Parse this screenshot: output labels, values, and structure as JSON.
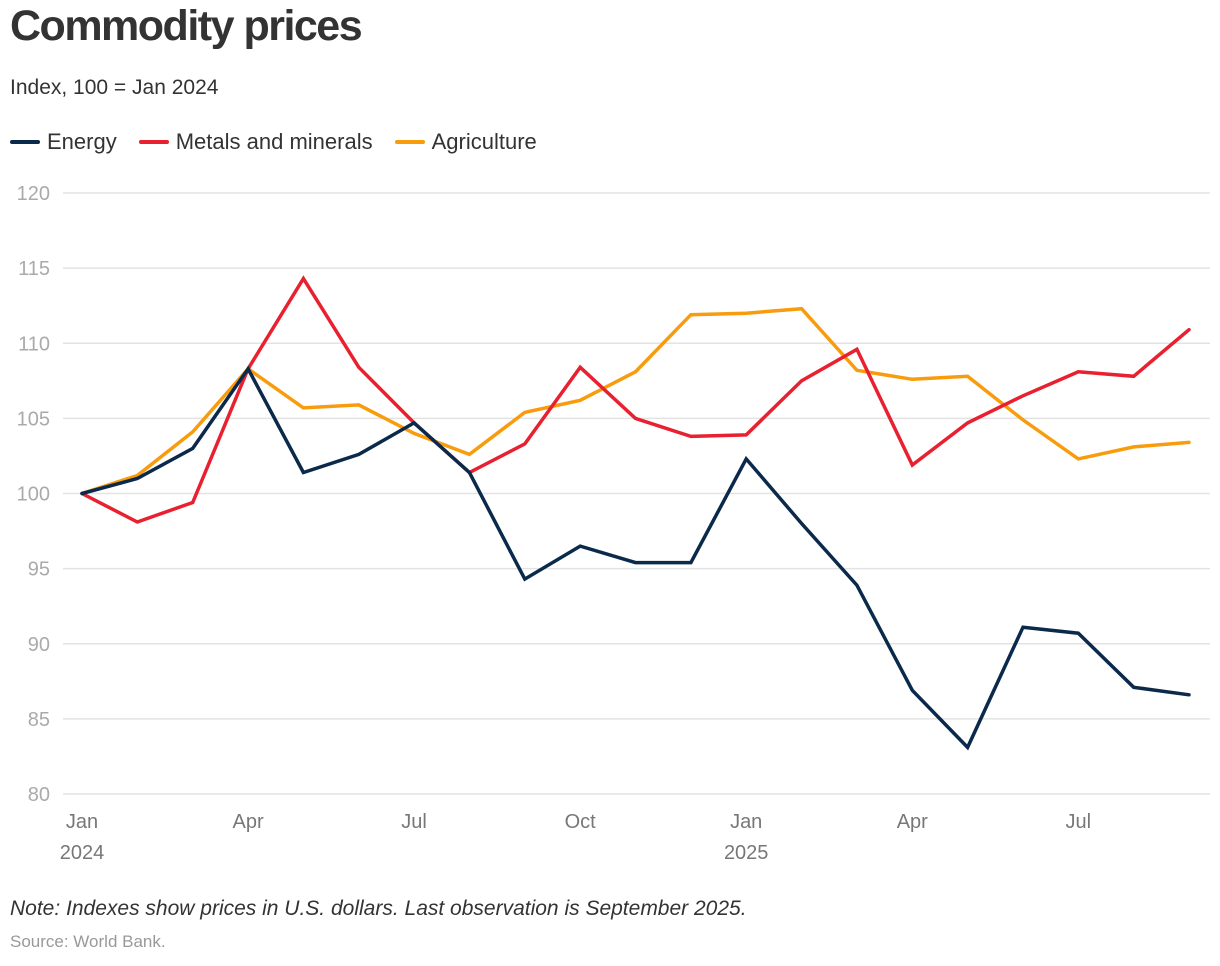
{
  "header": {
    "title": "Commodity prices",
    "subtitle": "Index, 100 = Jan 2024"
  },
  "legend": [
    {
      "label": "Energy",
      "color": "#0b2a4b"
    },
    {
      "label": "Metals and minerals",
      "color": "#e8202f"
    },
    {
      "label": "Agriculture",
      "color": "#f89c0e"
    }
  ],
  "footer": {
    "note": "Note: Indexes show prices in U.S. dollars. Last observation is September 2025.",
    "source": "Source: World Bank."
  },
  "chart_data": {
    "type": "line",
    "title": "Commodity prices",
    "subtitle": "Index, 100 = Jan 2024",
    "xlabel": "",
    "ylabel": "",
    "x": [
      "Jan 2024",
      "Feb 2024",
      "Mar 2024",
      "Apr 2024",
      "May 2024",
      "Jun 2024",
      "Jul 2024",
      "Aug 2024",
      "Sep 2024",
      "Oct 2024",
      "Nov 2024",
      "Dec 2024",
      "Jan 2025",
      "Feb 2025",
      "Mar 2025",
      "Apr 2025",
      "May 2025",
      "Jun 2025",
      "Jul 2025",
      "Aug 2025",
      "Sep 2025"
    ],
    "x_ticks": [
      {
        "index": 0,
        "label": "Jan",
        "sublabel": "2024"
      },
      {
        "index": 3,
        "label": "Apr",
        "sublabel": ""
      },
      {
        "index": 6,
        "label": "Jul",
        "sublabel": ""
      },
      {
        "index": 9,
        "label": "Oct",
        "sublabel": ""
      },
      {
        "index": 12,
        "label": "Jan",
        "sublabel": "2025"
      },
      {
        "index": 15,
        "label": "Apr",
        "sublabel": ""
      },
      {
        "index": 18,
        "label": "Jul",
        "sublabel": ""
      }
    ],
    "y_ticks": [
      80,
      85,
      90,
      95,
      100,
      105,
      110,
      115,
      120
    ],
    "ylim": [
      80,
      120
    ],
    "grid": true,
    "legend_position": "top-left",
    "series": [
      {
        "name": "Energy",
        "color": "#0b2a4b",
        "values": [
          100,
          101.0,
          103.0,
          108.3,
          101.4,
          102.6,
          104.7,
          101.4,
          94.3,
          96.5,
          95.4,
          95.4,
          102.3,
          98.0,
          93.9,
          86.9,
          83.1,
          91.1,
          90.7,
          87.1,
          86.6
        ]
      },
      {
        "name": "Metals and minerals",
        "color": "#e8202f",
        "values": [
          100,
          98.1,
          99.4,
          108.3,
          114.3,
          108.4,
          104.7,
          101.4,
          103.3,
          108.4,
          105.0,
          103.8,
          103.9,
          107.5,
          109.6,
          101.9,
          104.7,
          106.5,
          108.1,
          107.8,
          110.9
        ]
      },
      {
        "name": "Agriculture",
        "color": "#f89c0e",
        "values": [
          100,
          101.2,
          104.1,
          108.3,
          105.7,
          105.9,
          104.0,
          102.6,
          105.4,
          106.2,
          108.1,
          111.9,
          112.0,
          112.3,
          108.2,
          107.6,
          107.8,
          104.9,
          102.3,
          103.1,
          103.4
        ]
      }
    ]
  }
}
